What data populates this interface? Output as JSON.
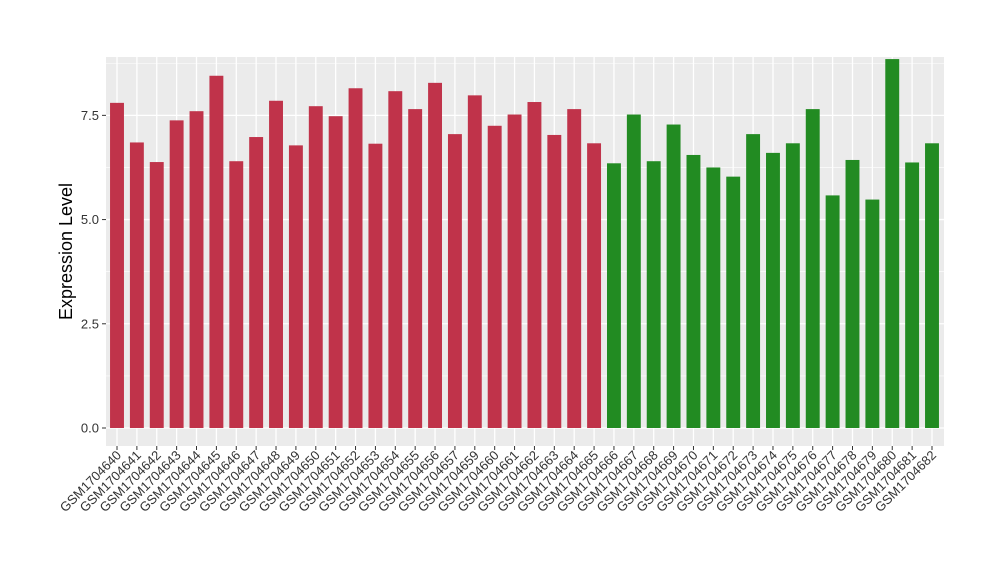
{
  "chart_data": {
    "type": "bar",
    "title": "",
    "xlabel": "",
    "ylabel": "Expression Level",
    "ylim": [
      0,
      8.9
    ],
    "yticks": [
      0.0,
      2.5,
      5.0,
      7.5
    ],
    "ytick_labels": [
      "0.0",
      "2.5",
      "5.0",
      "7.5"
    ],
    "grid": true,
    "legend": "none",
    "colors": {
      "group1": "#c0334a",
      "group2": "#228b22",
      "panel": "#ebebeb",
      "grid": "#ffffff"
    },
    "categories": [
      "GSM1704640",
      "GSM1704641",
      "GSM1704642",
      "GSM1704643",
      "GSM1704644",
      "GSM1704645",
      "GSM1704646",
      "GSM1704647",
      "GSM1704648",
      "GSM1704649",
      "GSM1704650",
      "GSM1704651",
      "GSM1704652",
      "GSM1704653",
      "GSM1704654",
      "GSM1704655",
      "GSM1704656",
      "GSM1704657",
      "GSM1704659",
      "GSM1704660",
      "GSM1704661",
      "GSM1704662",
      "GSM1704663",
      "GSM1704664",
      "GSM1704665",
      "GSM1704666",
      "GSM1704667",
      "GSM1704668",
      "GSM1704669",
      "GSM1704670",
      "GSM1704671",
      "GSM1704672",
      "GSM1704673",
      "GSM1704674",
      "GSM1704675",
      "GSM1704676",
      "GSM1704677",
      "GSM1704678",
      "GSM1704679",
      "GSM1704680",
      "GSM1704681",
      "GSM1704682"
    ],
    "values": [
      7.8,
      6.85,
      6.38,
      7.38,
      7.6,
      8.45,
      6.4,
      6.98,
      7.85,
      6.78,
      7.72,
      7.48,
      8.15,
      6.82,
      8.08,
      7.65,
      8.28,
      7.05,
      7.98,
      7.25,
      7.52,
      7.82,
      7.03,
      7.65,
      6.83,
      6.35,
      7.52,
      6.4,
      7.28,
      6.55,
      6.25,
      6.03,
      7.05,
      6.6,
      6.83,
      7.65,
      5.58,
      6.43,
      5.48,
      8.85,
      6.37,
      6.83
    ],
    "groups": [
      "group1",
      "group1",
      "group1",
      "group1",
      "group1",
      "group1",
      "group1",
      "group1",
      "group1",
      "group1",
      "group1",
      "group1",
      "group1",
      "group1",
      "group1",
      "group1",
      "group1",
      "group1",
      "group1",
      "group1",
      "group1",
      "group1",
      "group1",
      "group1",
      "group1",
      "group2",
      "group2",
      "group2",
      "group2",
      "group2",
      "group2",
      "group2",
      "group2",
      "group2",
      "group2",
      "group2",
      "group2",
      "group2",
      "group2",
      "group2",
      "group2",
      "group2"
    ]
  }
}
